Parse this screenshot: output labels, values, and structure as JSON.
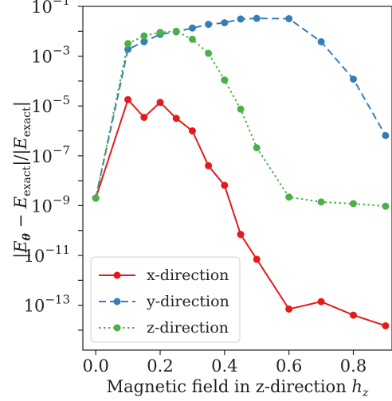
{
  "chart_data": {
    "type": "line",
    "title": "",
    "xlabel": "Magnetic field in z-direction",
    "xlabel_symbol": "h",
    "xlabel_subscript": "z",
    "ylabel": "|E_θ − E_exact| / |E_exact|",
    "ylabel_parts": {
      "open": "|",
      "e": "E",
      "theta": "θ",
      "minus": " − ",
      "exact": "exact",
      "mid": "|/|",
      "close": "|"
    },
    "x_scale": "linear",
    "y_scale": "log",
    "xlim": [
      -0.04,
      0.92
    ],
    "ylim_exp": [
      -14.8,
      -1
    ],
    "x_ticks": [
      "0.0",
      "0.2",
      "0.4",
      "0.6",
      "0.8"
    ],
    "x_tick_values": [
      0,
      0.2,
      0.4,
      0.6,
      0.8
    ],
    "y_ticks": [
      {
        "base": "10",
        "exp": "−1",
        "value": -1
      },
      {
        "base": "10",
        "exp": "−3",
        "value": -3
      },
      {
        "base": "10",
        "exp": "−5",
        "value": -5
      },
      {
        "base": "10",
        "exp": "−7",
        "value": -7
      },
      {
        "base": "10",
        "exp": "−9",
        "value": -9
      },
      {
        "base": "10",
        "exp": "−11",
        "value": -11
      },
      {
        "base": "10",
        "exp": "−13",
        "value": -13
      }
    ],
    "grid": false,
    "legend_position": "bottom-left",
    "series": [
      {
        "name": "x-direction",
        "color": "#e41a1c",
        "dash": "solid",
        "x": [
          0,
          0.1,
          0.15,
          0.2,
          0.25,
          0.3,
          0.35,
          0.4,
          0.45,
          0.5,
          0.6,
          0.7,
          0.8,
          0.9
        ],
        "y": [
          2e-09,
          1.8e-05,
          3.5e-06,
          1.4e-05,
          3.2e-06,
          1e-06,
          4e-08,
          6.5e-09,
          7e-11,
          7e-12,
          7e-14,
          1.4e-13,
          4e-14,
          1.5e-14
        ]
      },
      {
        "name": "y-direction",
        "color": "#377eb8",
        "dash": "dashed",
        "x": [
          0,
          0.1,
          0.15,
          0.2,
          0.25,
          0.3,
          0.35,
          0.4,
          0.45,
          0.5,
          0.6,
          0.7,
          0.8,
          0.9
        ],
        "y": [
          2e-09,
          0.0019,
          0.0038,
          0.0075,
          0.0095,
          0.0135,
          0.019,
          0.022,
          0.031,
          0.033,
          0.032,
          0.0038,
          0.00012,
          6.5e-07
        ]
      },
      {
        "name": "z-direction",
        "color": "#4daf4a",
        "dash": "dotted",
        "x": [
          0,
          0.1,
          0.15,
          0.2,
          0.25,
          0.3,
          0.35,
          0.4,
          0.45,
          0.5,
          0.6,
          0.7,
          0.8,
          0.9
        ],
        "y": [
          2e-09,
          0.0032,
          0.0065,
          0.009,
          0.01,
          0.0048,
          0.0013,
          0.00011,
          7.5e-06,
          2.1e-07,
          2.2e-09,
          1.4e-09,
          1.2e-09,
          9.5e-10
        ]
      }
    ]
  }
}
